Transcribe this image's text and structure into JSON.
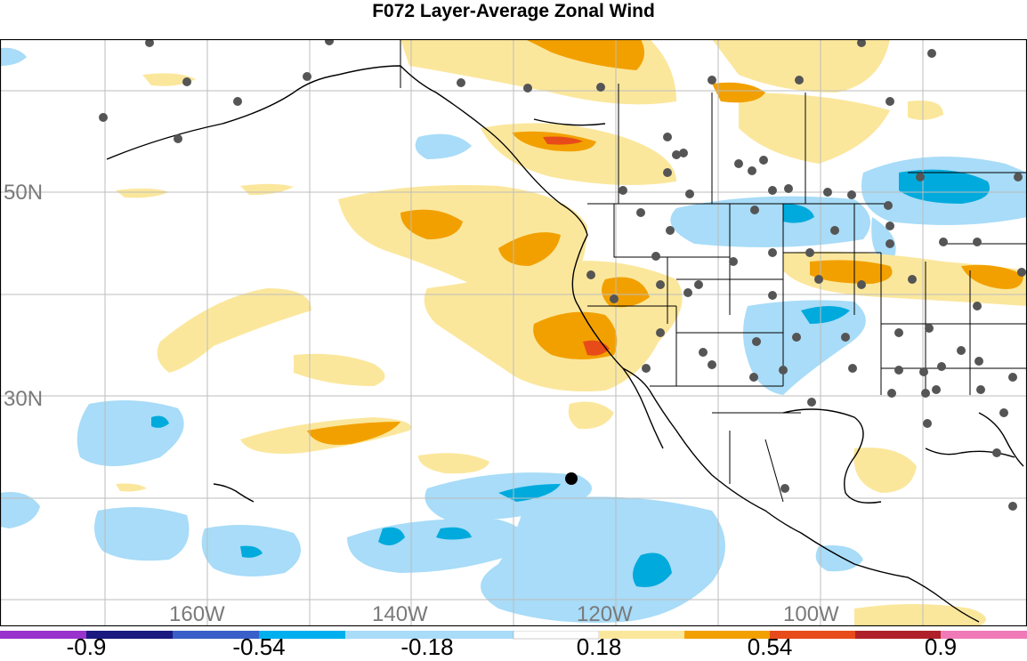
{
  "title": "F072 Layer-Average Zonal Wind",
  "map": {
    "lat_labels": [
      "50N",
      "30N"
    ],
    "lon_labels": [
      "160W",
      "140W",
      "120W",
      "100W"
    ],
    "colors": {
      "neg_deep": "#00aadd",
      "neg_light": "#a8dcf8",
      "pos_light": "#fbe79c",
      "pos_mid": "#f2a000",
      "pos_strong": "#e84b1a",
      "station": "#555555",
      "grid": "#bdbdbd",
      "coast": "#000000"
    }
  },
  "colorbar": {
    "colors": [
      "#9933cc",
      "#1a1a80",
      "#3a5fc8",
      "#00b0ee",
      "#a8dcf8",
      "#ffffff",
      "#fbe79c",
      "#f2a000",
      "#e84b1a",
      "#b0202a",
      "#f07ab8"
    ],
    "labels": [
      "-0.9",
      "-0.54",
      "-0.18",
      "0.18",
      "0.54",
      "0.9"
    ]
  }
}
